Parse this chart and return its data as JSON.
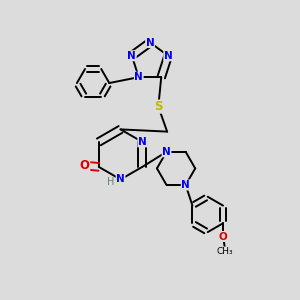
{
  "bg_color": "#dcdcdc",
  "bond_color": "#000000",
  "N_color": "#0000ee",
  "O_color": "#dd0000",
  "S_color": "#bbbb00",
  "font_size": 7.5,
  "bond_width": 1.4,
  "dbo": 0.013,
  "xlim": [
    0,
    1
  ],
  "ylim": [
    0,
    1
  ]
}
